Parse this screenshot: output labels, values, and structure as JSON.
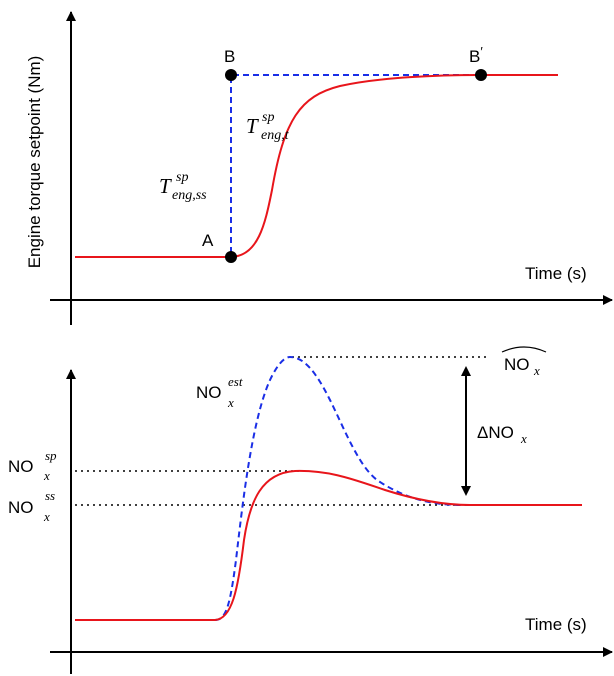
{
  "top_panel": {
    "ylabel": "Engine torque setpoint (Nm)",
    "xlabel": "Time (s)",
    "point_a": "A",
    "point_b": "B",
    "point_b_prime": "B",
    "prime_mark": "′",
    "t_ss": {
      "base": "T",
      "sup": "sp",
      "sub": "eng,ss"
    },
    "t_t": {
      "base": "T",
      "sup": "sp",
      "sub": "eng,t"
    },
    "colors": {
      "actual": "#e8151b",
      "setpoint": "#1a2ee6",
      "marker": "#000000"
    }
  },
  "bottom_panel": {
    "xlabel": "Time (s)",
    "nox_est": {
      "base": "NO",
      "sub": "x",
      "sup": "est"
    },
    "nox_sp": {
      "base": "NO",
      "sub": "x",
      "sup": "sp"
    },
    "nox_ss": {
      "base": "NO",
      "sub": "x",
      "sup": "ss"
    },
    "nox_hat": {
      "base": "NO",
      "sub": "x"
    },
    "delta": {
      "base": "ΔNO",
      "sub": "x"
    },
    "colors": {
      "actual": "#e8151b",
      "estimate": "#1a2ee6",
      "reference": "#000000"
    }
  }
}
